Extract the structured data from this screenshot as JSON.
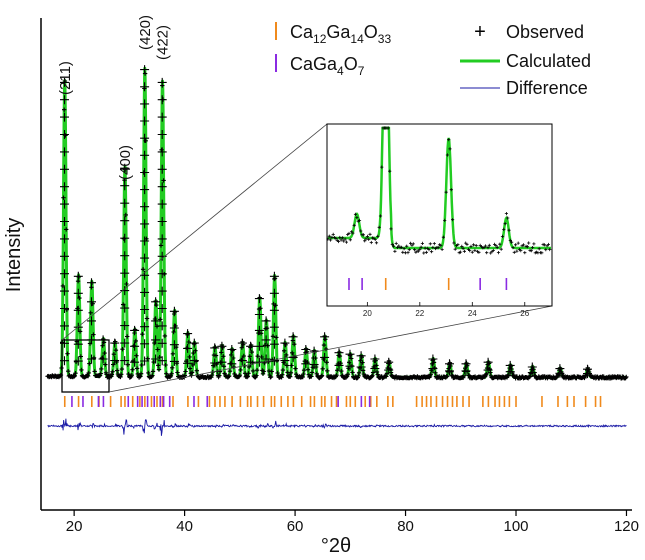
{
  "chart_data": {
    "type": "line",
    "title": "",
    "xlabel": "°2θ",
    "ylabel": "Intensity",
    "xlim": [
      14,
      121
    ],
    "ylim": [
      0,
      1000
    ],
    "x_ticks": [
      "20",
      "40",
      "60",
      "80",
      "100",
      "120"
    ],
    "x_tick_values": [
      20,
      40,
      60,
      80,
      100,
      120
    ],
    "legend": {
      "placement": "top-right",
      "phase_1": {
        "base": "Ca",
        "sub1": "12",
        "mid": "Ga",
        "sub2": "14",
        "mid2": "O",
        "sub3": "33",
        "color": "#f08a1c"
      },
      "phase_2": {
        "base": "CaGa",
        "sub1": "4",
        "mid": "O",
        "sub2": "7",
        "color": "#8a2be2"
      },
      "observed": "Observed",
      "calculated": "Calculated",
      "difference": "Difference"
    },
    "colors": {
      "observed": "#000000",
      "calculated": "#22cc22",
      "difference": "#1a1aa6",
      "phase_1": "#f08a1c",
      "phase_2": "#8a2be2"
    },
    "peaks": [
      {
        "x": 18.3,
        "h": 930
      },
      {
        "x": 20.8,
        "h": 320
      },
      {
        "x": 23.2,
        "h": 300
      },
      {
        "x": 25.3,
        "h": 120
      },
      {
        "x": 27.4,
        "h": 110
      },
      {
        "x": 29.2,
        "h": 660
      },
      {
        "x": 31.0,
        "h": 150
      },
      {
        "x": 32.8,
        "h": 970
      },
      {
        "x": 34.8,
        "h": 240
      },
      {
        "x": 36.0,
        "h": 930
      },
      {
        "x": 38.2,
        "h": 210
      },
      {
        "x": 40.6,
        "h": 140
      },
      {
        "x": 41.8,
        "h": 110
      },
      {
        "x": 45.5,
        "h": 95
      },
      {
        "x": 46.8,
        "h": 100
      },
      {
        "x": 48.6,
        "h": 90
      },
      {
        "x": 50.5,
        "h": 110
      },
      {
        "x": 52.0,
        "h": 100
      },
      {
        "x": 53.6,
        "h": 250
      },
      {
        "x": 54.8,
        "h": 180
      },
      {
        "x": 56.3,
        "h": 320
      },
      {
        "x": 58.2,
        "h": 110
      },
      {
        "x": 59.7,
        "h": 130
      },
      {
        "x": 62.0,
        "h": 90
      },
      {
        "x": 63.5,
        "h": 85
      },
      {
        "x": 65.4,
        "h": 130
      },
      {
        "x": 68.0,
        "h": 80
      },
      {
        "x": 70.0,
        "h": 75
      },
      {
        "x": 72.0,
        "h": 70
      },
      {
        "x": 74.5,
        "h": 60
      },
      {
        "x": 77.0,
        "h": 50
      },
      {
        "x": 85.0,
        "h": 60
      },
      {
        "x": 88.0,
        "h": 45
      },
      {
        "x": 91.0,
        "h": 45
      },
      {
        "x": 95.0,
        "h": 50
      },
      {
        "x": 99.0,
        "h": 40
      },
      {
        "x": 103.0,
        "h": 35
      },
      {
        "x": 108.0,
        "h": 30
      },
      {
        "x": 113.0,
        "h": 28
      }
    ],
    "hkl_labels": [
      {
        "text": "(211)",
        "x": 18.3
      },
      {
        "text": "(400)",
        "x": 29.2
      },
      {
        "text": "(420)",
        "x": 32.8
      },
      {
        "text": "(422)",
        "x": 36.0
      }
    ],
    "phase1_ticks": [
      18.3,
      20.8,
      23.2,
      24.5,
      26.6,
      28.5,
      29.2,
      30.6,
      31.9,
      32.8,
      34.0,
      35.0,
      36.0,
      37.9,
      40.6,
      42.5,
      44.5,
      45.5,
      46.4,
      47.3,
      48.6,
      50.1,
      51.4,
      52.0,
      53.2,
      54.3,
      55.7,
      56.3,
      57.5,
      58.7,
      59.7,
      61.2,
      62.8,
      63.5,
      64.8,
      65.4,
      66.6,
      67.5,
      69.3,
      70.0,
      70.9,
      72.7,
      73.7,
      74.8,
      76.8,
      77.7,
      82.0,
      83.0,
      83.8,
      84.6,
      85.6,
      86.7,
      87.6,
      88.5,
      89.3,
      90.4,
      91.5,
      94.0,
      95.0,
      96.2,
      97.0,
      97.9,
      98.8,
      100.0,
      104.7,
      107.6,
      109.3,
      110.5,
      112.6,
      114.4,
      115.3
    ],
    "phase2_ticks": [
      19.6,
      21.6,
      24.4,
      25.3,
      29.8,
      31.5,
      32.3,
      33.3,
      34.5,
      35.6,
      36.2,
      37.3,
      41.7,
      44.1,
      67.8,
      72.0,
      73.5
    ],
    "inset": {
      "xlim": [
        18.5,
        27
      ],
      "x_ticks": [
        "20",
        "22",
        "24",
        "26"
      ],
      "x_tick_values": [
        20,
        22,
        24,
        26
      ],
      "peaks": [
        {
          "x": 19.6,
          "h": 0.12
        },
        {
          "x": 20.7,
          "h": 1.4
        },
        {
          "x": 23.1,
          "h": 0.55
        },
        {
          "x": 25.3,
          "h": 0.15
        }
      ],
      "phase1_ticks": [
        20.7,
        23.1
      ],
      "phase2_ticks": [
        19.3,
        19.8,
        24.3,
        25.3
      ]
    }
  }
}
